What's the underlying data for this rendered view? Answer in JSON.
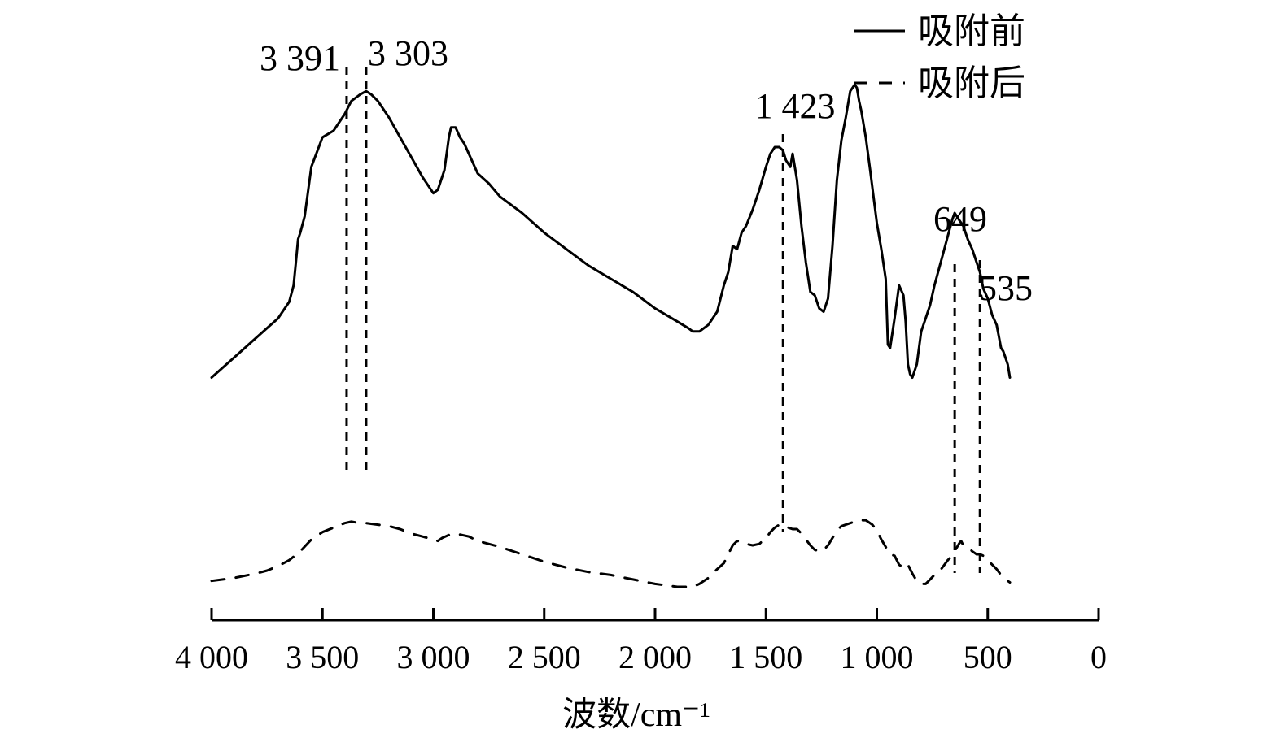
{
  "chart_data": {
    "type": "line",
    "xlabel": "波数/cm⁻¹",
    "xlim": [
      4000,
      0
    ],
    "x_ticks": [
      {
        "value": 4000,
        "label": "4 000"
      },
      {
        "value": 3500,
        "label": "3 500"
      },
      {
        "value": 3000,
        "label": "3 000"
      },
      {
        "value": 2500,
        "label": "2 500"
      },
      {
        "value": 2000,
        "label": "2 000"
      },
      {
        "value": 1500,
        "label": "1 500"
      },
      {
        "value": 1000,
        "label": "1 000"
      },
      {
        "value": 500,
        "label": "500"
      },
      {
        "value": 0,
        "label": "0"
      }
    ],
    "ylim": [
      0,
      100
    ],
    "grid": false,
    "legend_position": "top-right",
    "series": [
      {
        "name": "吸附前",
        "style": "solid",
        "color": "#000000",
        "x": [
          4000,
          3900,
          3800,
          3750,
          3700,
          3680,
          3650,
          3630,
          3620,
          3610,
          3600,
          3580,
          3550,
          3500,
          3450,
          3400,
          3370,
          3330,
          3303,
          3280,
          3250,
          3200,
          3150,
          3100,
          3050,
          3000,
          2980,
          2950,
          2930,
          2920,
          2900,
          2880,
          2860,
          2840,
          2800,
          2750,
          2700,
          2600,
          2500,
          2400,
          2300,
          2200,
          2100,
          2000,
          1900,
          1850,
          1830,
          1800,
          1760,
          1720,
          1690,
          1670,
          1650,
          1630,
          1610,
          1590,
          1560,
          1530,
          1500,
          1480,
          1460,
          1440,
          1423,
          1410,
          1390,
          1380,
          1370,
          1360,
          1340,
          1320,
          1300,
          1280,
          1260,
          1240,
          1220,
          1200,
          1180,
          1160,
          1140,
          1120,
          1100,
          1090,
          1080,
          1070,
          1050,
          1030,
          1000,
          980,
          960,
          950,
          940,
          920,
          900,
          880,
          870,
          860,
          850,
          840,
          820,
          800,
          780,
          760,
          740,
          720,
          700,
          680,
          660,
          649,
          630,
          610,
          590,
          570,
          550,
          535,
          520,
          500,
          480,
          460,
          440,
          430,
          420,
          410,
          400
        ],
        "y": [
          10,
          16,
          22,
          25,
          28,
          30,
          33,
          38,
          45,
          52,
          54,
          59,
          74,
          83,
          85,
          90,
          94,
          96,
          97,
          96,
          94,
          89,
          83,
          77,
          71,
          66,
          67,
          73,
          83,
          86,
          86,
          83,
          81,
          78,
          72,
          69,
          65,
          60,
          54,
          49,
          44,
          40,
          36,
          31,
          27,
          25,
          24,
          24,
          26,
          30,
          38,
          42,
          50,
          49,
          54,
          56,
          61,
          67,
          74,
          78,
          80,
          80,
          79,
          76,
          74,
          78,
          74,
          70,
          56,
          45,
          36,
          35,
          31,
          30,
          34,
          50,
          70,
          82,
          89,
          97,
          99,
          98,
          94,
          91,
          83,
          73,
          57,
          49,
          40,
          20,
          19,
          28,
          38,
          35,
          27,
          14,
          11,
          10,
          14,
          24,
          28,
          32,
          38,
          43,
          48,
          53,
          58,
          60,
          58,
          56,
          52,
          49,
          45,
          42,
          37,
          34,
          29,
          26,
          19,
          18,
          16,
          14,
          10
        ]
      },
      {
        "name": "吸附后",
        "style": "dashed",
        "color": "#000000",
        "x": [
          4000,
          3900,
          3800,
          3750,
          3700,
          3650,
          3600,
          3550,
          3500,
          3450,
          3400,
          3370,
          3330,
          3303,
          3250,
          3200,
          3150,
          3100,
          3050,
          3000,
          2980,
          2960,
          2930,
          2900,
          2870,
          2840,
          2800,
          2700,
          2600,
          2500,
          2400,
          2300,
          2200,
          2100,
          2000,
          1900,
          1850,
          1830,
          1800,
          1760,
          1720,
          1690,
          1670,
          1650,
          1630,
          1610,
          1590,
          1560,
          1530,
          1500,
          1480,
          1460,
          1440,
          1423,
          1400,
          1380,
          1360,
          1340,
          1320,
          1300,
          1280,
          1260,
          1240,
          1220,
          1200,
          1180,
          1160,
          1140,
          1120,
          1100,
          1080,
          1060,
          1050,
          1040,
          1020,
          1000,
          980,
          960,
          940,
          920,
          900,
          880,
          870,
          860,
          850,
          840,
          820,
          800,
          780,
          760,
          740,
          720,
          700,
          680,
          660,
          649,
          630,
          620,
          610,
          590,
          570,
          550,
          535,
          520,
          500,
          480,
          460,
          440,
          420,
          400
        ],
        "y": [
          4,
          6,
          9,
          11,
          14,
          18,
          24,
          32,
          37,
          40,
          43,
          44,
          43,
          43,
          42,
          41,
          39,
          36,
          34,
          32,
          31,
          33,
          35,
          36,
          35,
          34,
          31,
          27,
          22,
          17,
          13,
          10,
          8,
          5,
          2,
          0,
          0,
          0,
          2,
          6,
          12,
          16,
          22,
          28,
          31,
          30,
          29,
          28,
          29,
          33,
          37,
          40,
          42,
          42,
          40,
          39,
          39,
          36,
          32,
          28,
          25,
          24,
          25,
          28,
          33,
          38,
          41,
          42,
          43,
          44,
          45,
          45,
          45,
          44,
          42,
          38,
          32,
          27,
          22,
          21,
          15,
          13,
          15,
          15,
          12,
          9,
          4,
          2,
          2,
          5,
          8,
          10,
          14,
          18,
          21,
          24,
          29,
          31,
          28,
          27,
          24,
          22,
          22,
          21,
          18,
          15,
          12,
          8,
          5,
          3
        ]
      }
    ],
    "peak_markers": [
      {
        "x": 3391,
        "label": "3 391"
      },
      {
        "x": 3303,
        "label": "3 303"
      },
      {
        "x": 1423,
        "label": "1 423"
      },
      {
        "x": 649,
        "label": "649"
      },
      {
        "x": 535,
        "label": "535"
      }
    ]
  }
}
